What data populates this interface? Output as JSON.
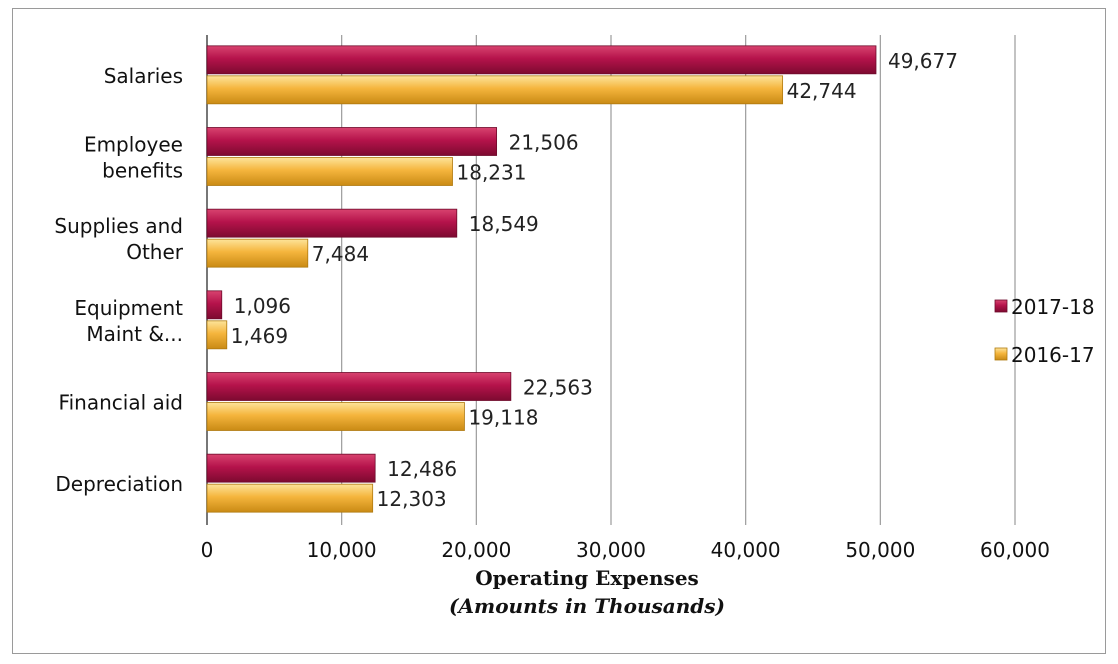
{
  "chart_data": {
    "type": "bar",
    "orientation": "horizontal",
    "categories": [
      "Salaries",
      "Employee benefits",
      "Supplies and Other",
      "Equipment Maint &...",
      "Financial aid",
      "Depreciation"
    ],
    "category_lines": [
      [
        "Salaries"
      ],
      [
        "Employee",
        "benefits"
      ],
      [
        "Supplies and",
        "Other"
      ],
      [
        "Equipment",
        "Maint &..."
      ],
      [
        "Financial aid"
      ],
      [
        "Depreciation"
      ]
    ],
    "series": [
      {
        "name": "2017-18",
        "color": "#b5134b",
        "values": [
          49677,
          21506,
          18549,
          1096,
          22563,
          12486
        ],
        "labels": [
          "49,677",
          "21,506",
          "18,549",
          "1,096",
          "22,563",
          "12,486"
        ]
      },
      {
        "name": "2016-17",
        "color": "#f5b53d",
        "values": [
          42744,
          18231,
          7484,
          1469,
          19118,
          12303
        ],
        "labels": [
          "42,744",
          "18,231",
          "7,484",
          "1,469",
          "19,118",
          "12,303"
        ]
      }
    ],
    "xlim": [
      0,
      60000
    ],
    "xticks": [
      0,
      10000,
      20000,
      30000,
      40000,
      50000,
      60000
    ],
    "xtick_labels": [
      "0",
      "10,000",
      "20,000",
      "30,000",
      "40,000",
      "50,000",
      "60,000"
    ],
    "xlabel": "Operating Expenses",
    "xlabel_sub": "(Amounts in Thousands)",
    "ylabel": "",
    "grid": true,
    "legend_position": "right"
  }
}
